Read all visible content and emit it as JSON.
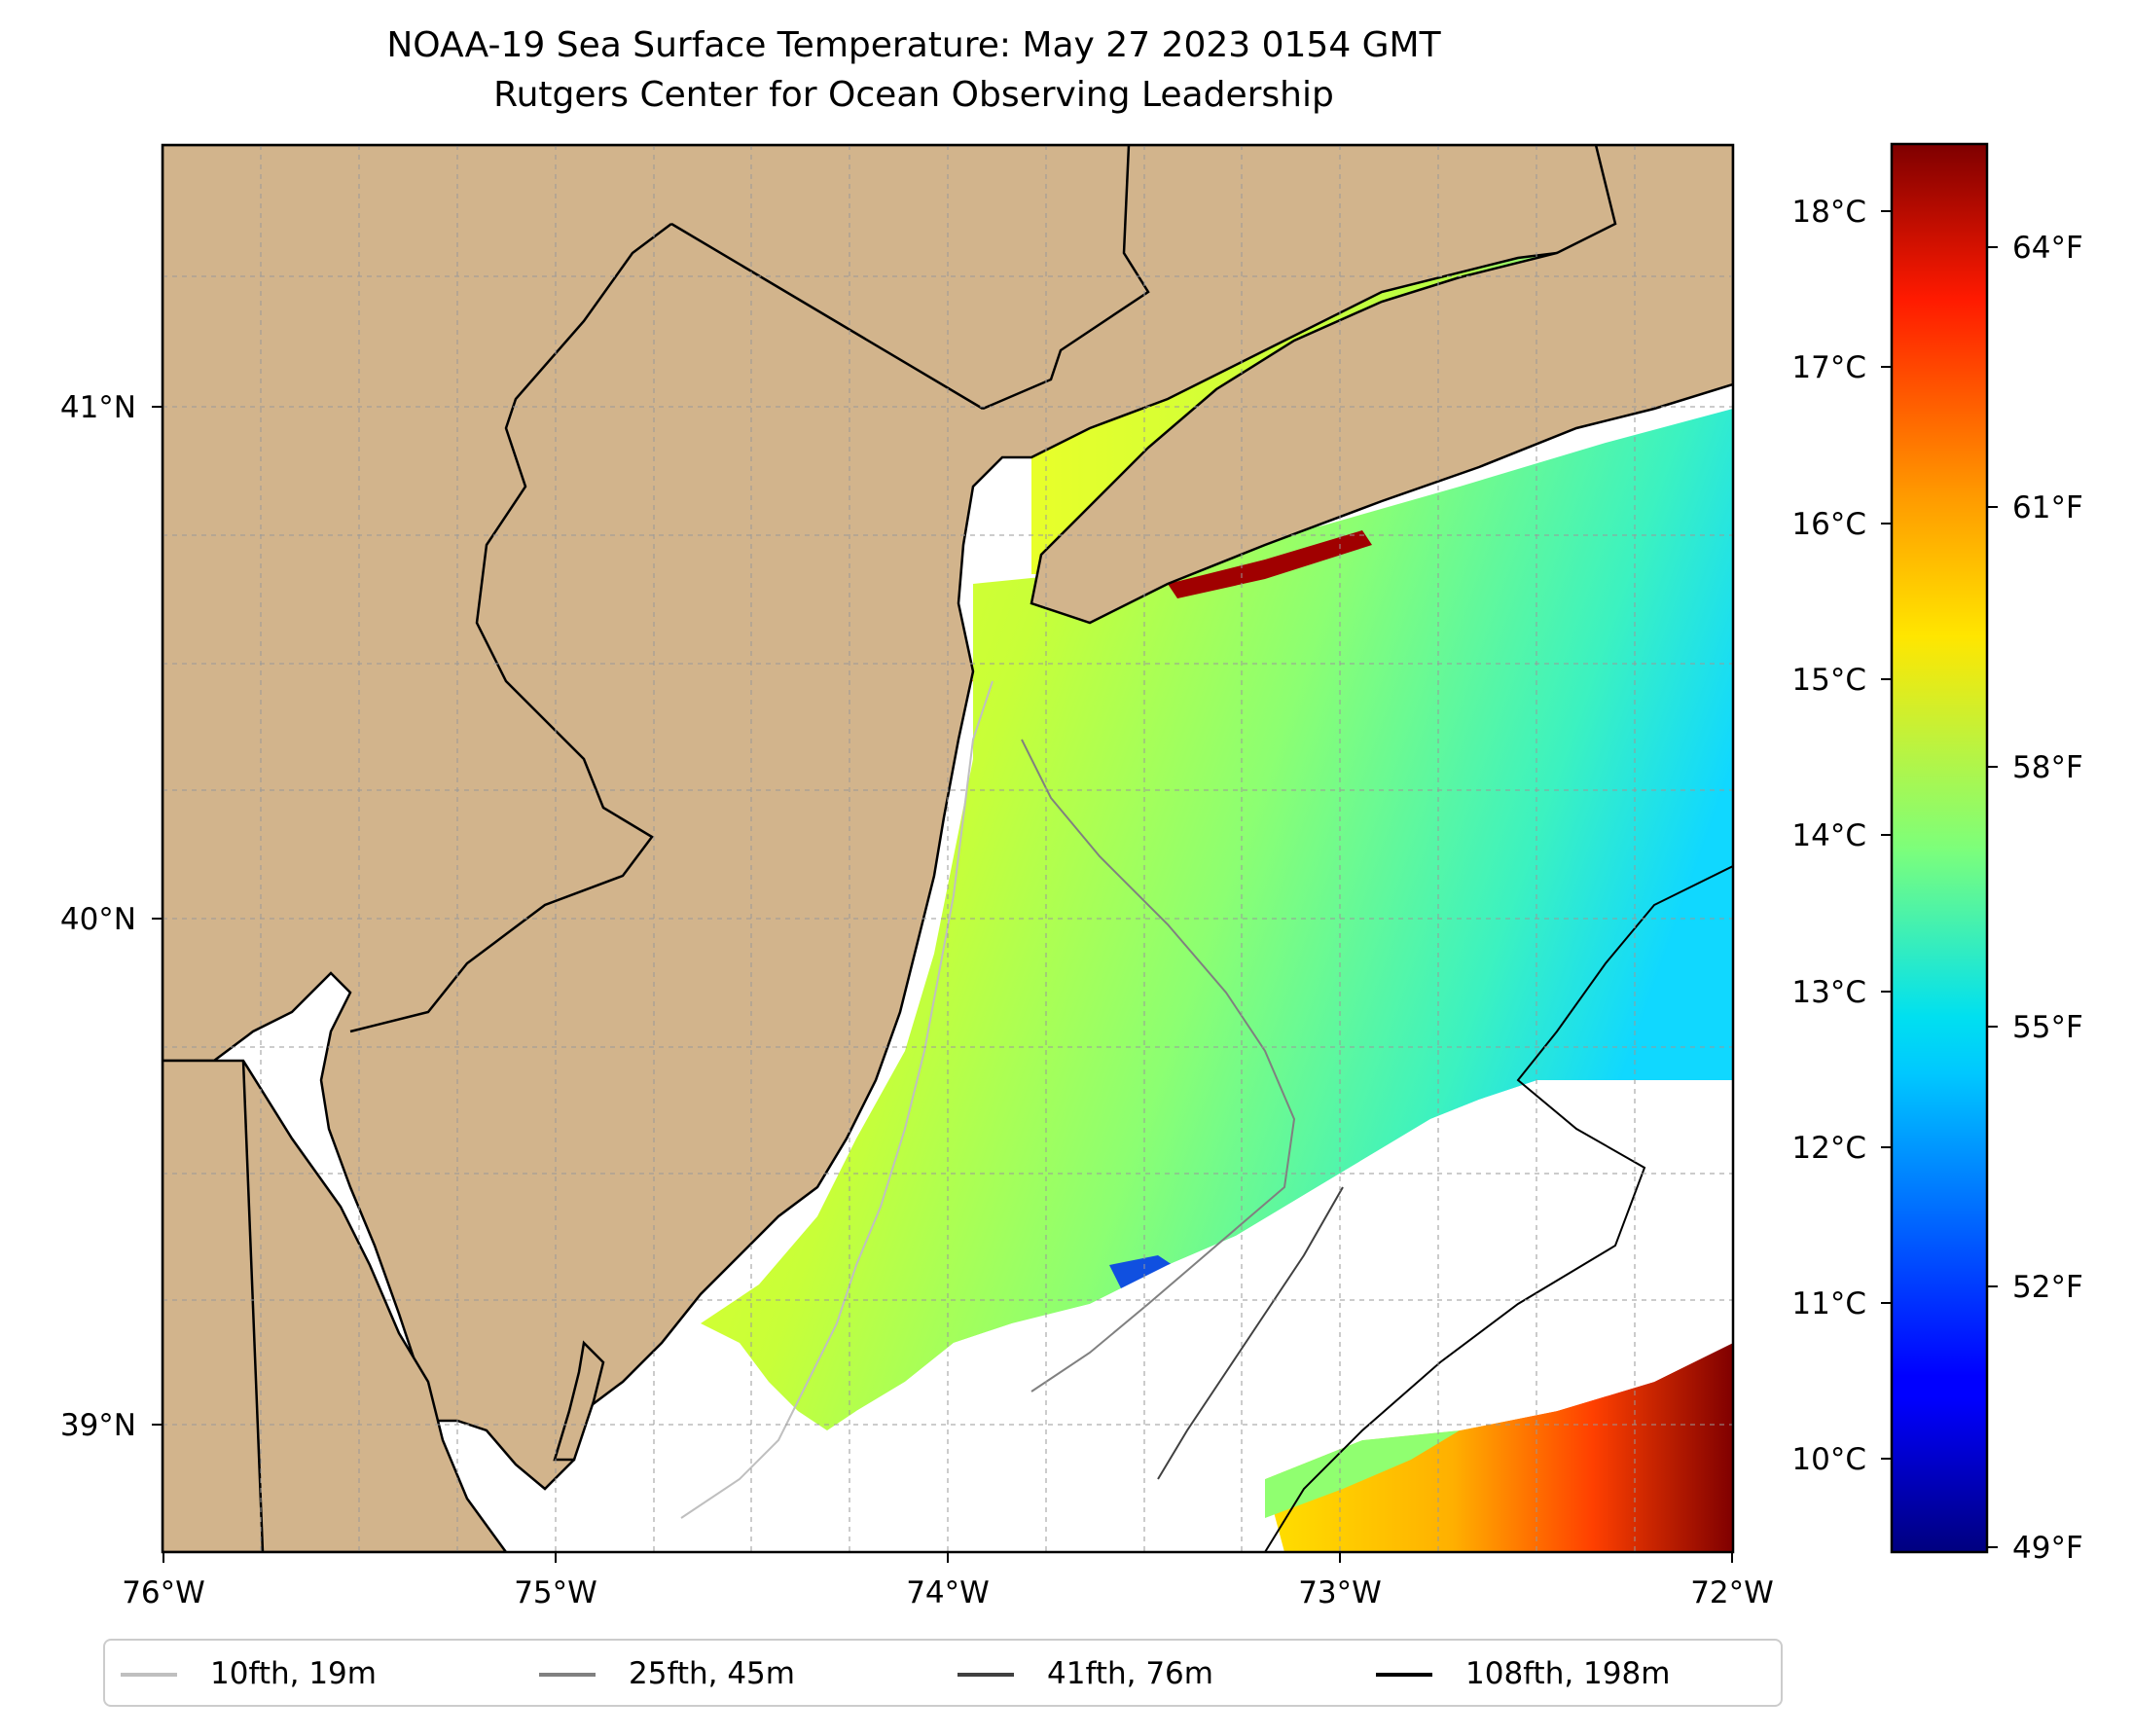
{
  "title": {
    "line1": "NOAA-19 Sea Surface Temperature: May 27 2023 0154 GMT",
    "line2": "Rutgers Center for Ocean Observing Leadership"
  },
  "map": {
    "lon_range": [
      -76,
      -72
    ],
    "lat_range": [
      38.75,
      41.5
    ],
    "x_ticks": [
      "76°W",
      "75°W",
      "74°W",
      "73°W",
      "72°W"
    ],
    "y_ticks": [
      "39°N",
      "40°N",
      "41°N"
    ],
    "land_color": "#d2b48c",
    "grid": "dashed",
    "features": [
      "coastline",
      "state-borders",
      "bathymetry-contours"
    ],
    "no_data_color": "#ffffff"
  },
  "colorbar": {
    "colormap": "jet",
    "celsius_ticks": [
      "18°C",
      "17°C",
      "16°C",
      "15°C",
      "14°C",
      "13°C",
      "12°C",
      "11°C",
      "10°C"
    ],
    "fahrenheit_ticks": [
      "64°F",
      "61°F",
      "58°F",
      "55°F",
      "52°F",
      "49°F"
    ],
    "range_c": [
      9.5,
      18.5
    ]
  },
  "legend": {
    "items": [
      {
        "label": "10fth, 19m",
        "color": "#bfbfbf"
      },
      {
        "label": "25fth, 45m",
        "color": "#808080"
      },
      {
        "label": "41fth, 76m",
        "color": "#404040"
      },
      {
        "label": "108fth, 198m",
        "color": "#000000"
      }
    ]
  }
}
